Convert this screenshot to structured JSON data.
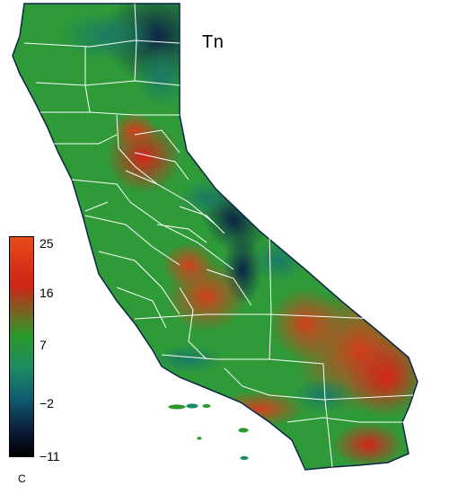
{
  "map": {
    "title": "Tn",
    "legend": {
      "ticks": [
        "25",
        "16",
        "7",
        "−2",
        "−11"
      ],
      "unit": "C",
      "colors": [
        "#e84a1a",
        "#cf2416",
        "#2b9a2b",
        "#1b8a62",
        "#0f5b6e",
        "#0b1d3a",
        "#000000"
      ]
    },
    "palette": {
      "cold": "#0b2447",
      "mid_cold": "#1a6b62",
      "green": "#2e9b38",
      "warm": "#c9461c",
      "hot": "#d7321a",
      "border": "#ffffff"
    }
  }
}
